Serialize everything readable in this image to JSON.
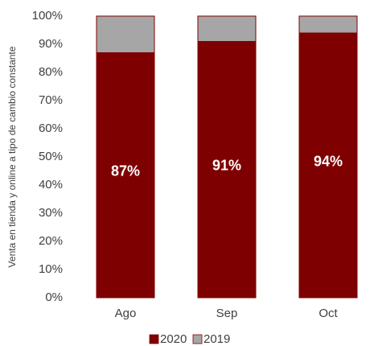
{
  "chart_data": {
    "type": "stacked_bar",
    "y_label": "Venta en tienda y online a tipo de cambio constante",
    "categories": [
      "Ago",
      "Sep",
      "Oct"
    ],
    "series": [
      {
        "name": "2020",
        "color": "#7f0000",
        "values": [
          87,
          91,
          94
        ],
        "value_labels": [
          "87%",
          "91%",
          "94%"
        ]
      },
      {
        "name": "2019",
        "color": "#a6a6a6",
        "values": [
          13,
          9,
          6
        ]
      }
    ],
    "ylim": [
      0,
      100
    ],
    "yticks": [
      {
        "value": 0,
        "label": "0%"
      },
      {
        "value": 10,
        "label": "10%"
      },
      {
        "value": 20,
        "label": "20%"
      },
      {
        "value": 30,
        "label": "30%"
      },
      {
        "value": 40,
        "label": "40%"
      },
      {
        "value": 50,
        "label": "50%"
      },
      {
        "value": 60,
        "label": "60%"
      },
      {
        "value": 70,
        "label": "70%"
      },
      {
        "value": 80,
        "label": "80%"
      },
      {
        "value": 90,
        "label": "90%"
      },
      {
        "value": 100,
        "label": "100%"
      }
    ],
    "legend": "bottom"
  }
}
